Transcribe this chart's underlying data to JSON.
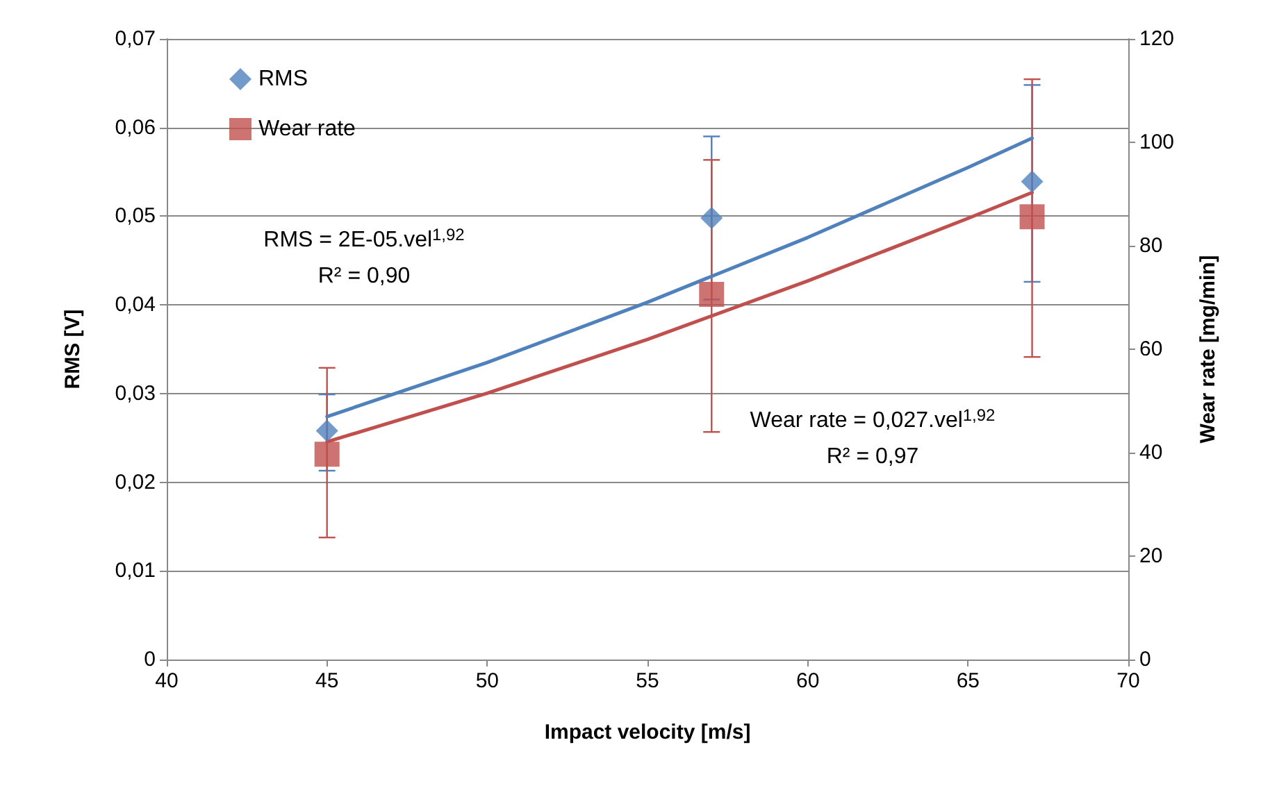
{
  "chart_data": {
    "type": "scatter",
    "xlabel": "Impact velocity [m/s]",
    "ylabel": "RMS [V]",
    "y2label": "Wear rate [mg/min]",
    "xlim": [
      40,
      70
    ],
    "xticks": [
      40,
      45,
      50,
      55,
      60,
      65,
      70
    ],
    "ylim": [
      0,
      0.07
    ],
    "yticks": [
      {
        "value": 0,
        "label": "0"
      },
      {
        "value": 0.01,
        "label": "0,01"
      },
      {
        "value": 0.02,
        "label": "0,02"
      },
      {
        "value": 0.03,
        "label": "0,03"
      },
      {
        "value": 0.04,
        "label": "0,04"
      },
      {
        "value": 0.05,
        "label": "0,05"
      },
      {
        "value": 0.06,
        "label": "0,06"
      },
      {
        "value": 0.07,
        "label": "0,07"
      }
    ],
    "y2lim": [
      0,
      120
    ],
    "y2ticks": [
      0,
      20,
      40,
      60,
      80,
      100,
      120
    ],
    "grid": "y",
    "legend": "top left",
    "series": [
      {
        "name": "RMS",
        "marker": "diamond",
        "color": "#4f81bd",
        "x": [
          45,
          57,
          67
        ],
        "values": [
          0.0258,
          0.0498,
          0.0539
        ],
        "errors": [
          [
            0.0213,
            0.0299
          ],
          0.0092,
          [
            0.0426,
            0.0648
          ]
        ]
      },
      {
        "name": "Wear rate",
        "marker": "square",
        "color": "#c0504d",
        "axis": "y2",
        "x": [
          45,
          57,
          67
        ],
        "values": [
          39.7,
          70.6,
          85.6
        ],
        "errors": [
          [
            23.6,
            56.4
          ],
          [
            44.0,
            96.6
          ],
          [
            58.5,
            112.2
          ]
        ]
      },
      {
        "type": "line",
        "marker": "none",
        "color": "#4f81bd",
        "x": [
          45,
          50,
          55,
          60,
          65,
          67
        ],
        "values": [
          0.0274,
          0.0335,
          0.0403,
          0.0476,
          0.0555,
          0.0588
        ]
      },
      {
        "type": "line",
        "marker": "none",
        "color": "#c0504d",
        "axis": "y2",
        "x": [
          45,
          50,
          55,
          60,
          65,
          67
        ],
        "values": [
          42.1,
          51.5,
          61.9,
          73.2,
          85.3,
          90.3
        ]
      }
    ],
    "annotations": [
      "RMS = 2E-05.vel$^{1,92}$\nR² = 0,90",
      "Wear rate = 0,027.vel$^{1,92}$\nR² = 0,97"
    ]
  }
}
